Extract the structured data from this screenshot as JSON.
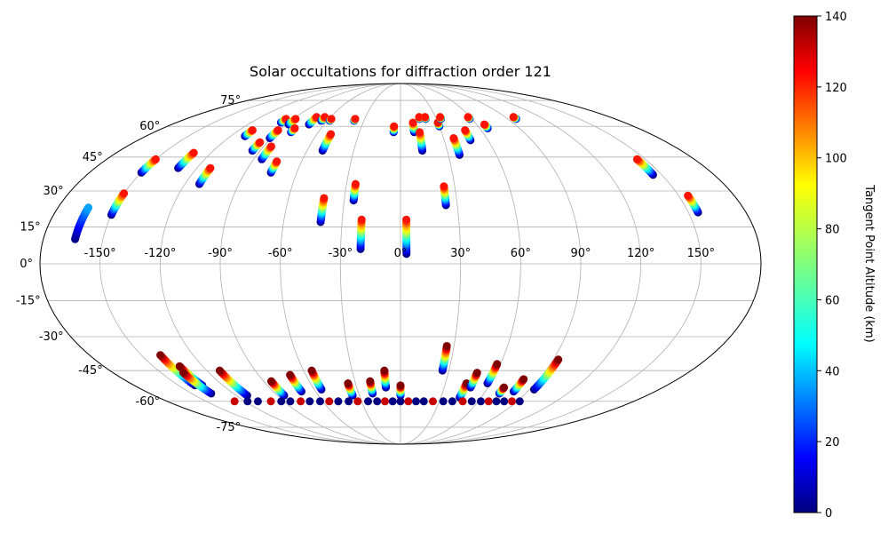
{
  "chart_data": {
    "type": "scatter",
    "projection": "mollweide",
    "title": "Solar occultations for diffraction order 121",
    "grid": true,
    "x_ticks": [
      "-150°",
      "-120°",
      "-90°",
      "-60°",
      "-30°",
      "0°",
      "30°",
      "60°",
      "90°",
      "120°",
      "150°"
    ],
    "y_ticks": [
      "75°",
      "60°",
      "45°",
      "30°",
      "15°",
      "0°",
      "-15°",
      "-30°",
      "-45°",
      "-60°",
      "-75°"
    ],
    "colorbar": {
      "label": "Tangent Point Altitude (km)",
      "colormap": "jet",
      "range": [
        0,
        140
      ],
      "ticks": [
        "0",
        "20",
        "40",
        "60",
        "80",
        "100",
        "120",
        "140"
      ]
    },
    "tracks": [
      {
        "lon": -164,
        "lat": [
          10,
          23
        ],
        "alt": [
          0,
          40
        ]
      },
      {
        "lon": -150,
        "lat": [
          20,
          29
        ],
        "alt": [
          0,
          120
        ]
      },
      {
        "lon": -150,
        "lat": [
          38,
          44
        ],
        "alt": [
          0,
          120
        ]
      },
      {
        "lon": -131,
        "lat": [
          40,
          47
        ],
        "alt": [
          0,
          120
        ]
      },
      {
        "lon": -112,
        "lat": [
          33,
          40
        ],
        "alt": [
          0,
          120
        ]
      },
      {
        "lon": -110,
        "lat": [
          55,
          58
        ],
        "alt": [
          0,
          120
        ]
      },
      {
        "lon": -96,
        "lat": [
          62,
          64
        ],
        "alt": [
          0,
          120
        ]
      },
      {
        "lon": -95,
        "lat": [
          48,
          52
        ],
        "alt": [
          0,
          120
        ]
      },
      {
        "lon": -91,
        "lat": [
          54,
          58
        ],
        "alt": [
          0,
          120
        ]
      },
      {
        "lon": -88,
        "lat": [
          61,
          64
        ],
        "alt": [
          0,
          120
        ]
      },
      {
        "lon": -85,
        "lat": [
          44,
          50
        ],
        "alt": [
          0,
          120
        ]
      },
      {
        "lon": -80,
        "lat": [
          57,
          59
        ],
        "alt": [
          0,
          120
        ]
      },
      {
        "lon": -75,
        "lat": [
          38,
          43
        ],
        "alt": [
          0,
          120
        ]
      },
      {
        "lon": -72,
        "lat": [
          61,
          65
        ],
        "alt": [
          0,
          120
        ]
      },
      {
        "lon": -65,
        "lat": [
          63,
          65
        ],
        "alt": [
          0,
          120
        ]
      },
      {
        "lon": -58,
        "lat": [
          63,
          64
        ],
        "alt": [
          0,
          120
        ]
      },
      {
        "lon": -50,
        "lat": [
          48,
          56
        ],
        "alt": [
          0,
          120
        ]
      },
      {
        "lon": -41,
        "lat": [
          17,
          27
        ],
        "alt": [
          0,
          120
        ]
      },
      {
        "lon": -38,
        "lat": [
          63,
          64
        ],
        "alt": [
          0,
          120
        ]
      },
      {
        "lon": -25,
        "lat": [
          26,
          33
        ],
        "alt": [
          0,
          120
        ]
      },
      {
        "lon": -20,
        "lat": [
          6,
          18
        ],
        "alt": [
          0,
          120
        ]
      },
      {
        "lon": -5,
        "lat": [
          57,
          60
        ],
        "alt": [
          0,
          120
        ]
      },
      {
        "lon": 3,
        "lat": [
          4,
          18
        ],
        "alt": [
          0,
          120
        ]
      },
      {
        "lon": 10,
        "lat": [
          57,
          62
        ],
        "alt": [
          0,
          120
        ]
      },
      {
        "lon": 14,
        "lat": [
          48,
          57
        ],
        "alt": [
          0,
          120
        ]
      },
      {
        "lon": 16,
        "lat": [
          64,
          65
        ],
        "alt": [
          0,
          120
        ]
      },
      {
        "lon": 21,
        "lat": [
          64,
          65
        ],
        "alt": [
          0,
          120
        ]
      },
      {
        "lon": 24,
        "lat": [
          24,
          32
        ],
        "alt": [
          0,
          120
        ]
      },
      {
        "lon": 30,
        "lat": [
          60,
          62
        ],
        "alt": [
          0,
          120
        ]
      },
      {
        "lon": 34,
        "lat": [
          64,
          65
        ],
        "alt": [
          0,
          120
        ]
      },
      {
        "lon": 37,
        "lat": [
          46,
          54
        ],
        "alt": [
          0,
          120
        ]
      },
      {
        "lon": 48,
        "lat": [
          53,
          58
        ],
        "alt": [
          0,
          120
        ]
      },
      {
        "lon": 58,
        "lat": [
          64,
          65
        ],
        "alt": [
          0,
          120
        ]
      },
      {
        "lon": 66,
        "lat": [
          59,
          61
        ],
        "alt": [
          0,
          120
        ]
      },
      {
        "lon": 97,
        "lat": [
          64,
          65
        ],
        "alt": [
          0,
          120
        ]
      },
      {
        "lon": 145,
        "lat": [
          37,
          44
        ],
        "alt": [
          0,
          120
        ]
      },
      {
        "lon": 155,
        "lat": [
          21,
          28
        ],
        "alt": [
          0,
          120
        ]
      },
      {
        "lon": -139,
        "lat": [
          -52,
          -38
        ],
        "alt": [
          0,
          140
        ]
      },
      {
        "lon": -134,
        "lat": [
          -52,
          -43
        ],
        "alt": [
          0,
          140
        ]
      },
      {
        "lon": -136,
        "lat": [
          -56,
          -46
        ],
        "alt": [
          0,
          140
        ]
      },
      {
        "lon": -112,
        "lat": [
          -57,
          -45
        ],
        "alt": [
          0,
          140
        ]
      },
      {
        "lon": -85,
        "lat": [
          -57,
          -50
        ],
        "alt": [
          0,
          140
        ]
      },
      {
        "lon": -70,
        "lat": [
          -55,
          -47
        ],
        "alt": [
          0,
          140
        ]
      },
      {
        "lon": -55,
        "lat": [
          -54,
          -45
        ],
        "alt": [
          0,
          140
        ]
      },
      {
        "lon": -35,
        "lat": [
          -57,
          -51
        ],
        "alt": [
          0,
          140
        ]
      },
      {
        "lon": -20,
        "lat": [
          -56,
          -50
        ],
        "alt": [
          0,
          140
        ]
      },
      {
        "lon": -10,
        "lat": [
          -53,
          -45
        ],
        "alt": [
          0,
          140
        ]
      },
      {
        "lon": 0,
        "lat": [
          -57,
          -52
        ],
        "alt": [
          0,
          140
        ]
      },
      {
        "lon": 26,
        "lat": [
          -45,
          -34
        ],
        "alt": [
          0,
          140
        ]
      },
      {
        "lon": 44,
        "lat": [
          -58,
          -51
        ],
        "alt": [
          0,
          140
        ]
      },
      {
        "lon": 48,
        "lat": [
          -53,
          -46
        ],
        "alt": [
          0,
          140
        ]
      },
      {
        "lon": 58,
        "lat": [
          -51,
          -42
        ],
        "alt": [
          0,
          140
        ]
      },
      {
        "lon": 71,
        "lat": [
          -56,
          -53
        ],
        "alt": [
          0,
          140
        ]
      },
      {
        "lon": 80,
        "lat": [
          -55,
          -49
        ],
        "alt": [
          0,
          140
        ]
      },
      {
        "lon": 93,
        "lat": [
          -54,
          -40
        ],
        "alt": [
          0,
          140
        ]
      }
    ],
    "south_dots_lat": -60,
    "south_dots_lon": [
      -128,
      -118,
      -110,
      -100,
      -92,
      -85,
      -77,
      -70,
      -62,
      -55,
      -48,
      -40,
      -33,
      -25,
      -18,
      -12,
      -6,
      0,
      6,
      12,
      18,
      25,
      33,
      40,
      48,
      55,
      62,
      68,
      74,
      80,
      86,
      92
    ]
  }
}
